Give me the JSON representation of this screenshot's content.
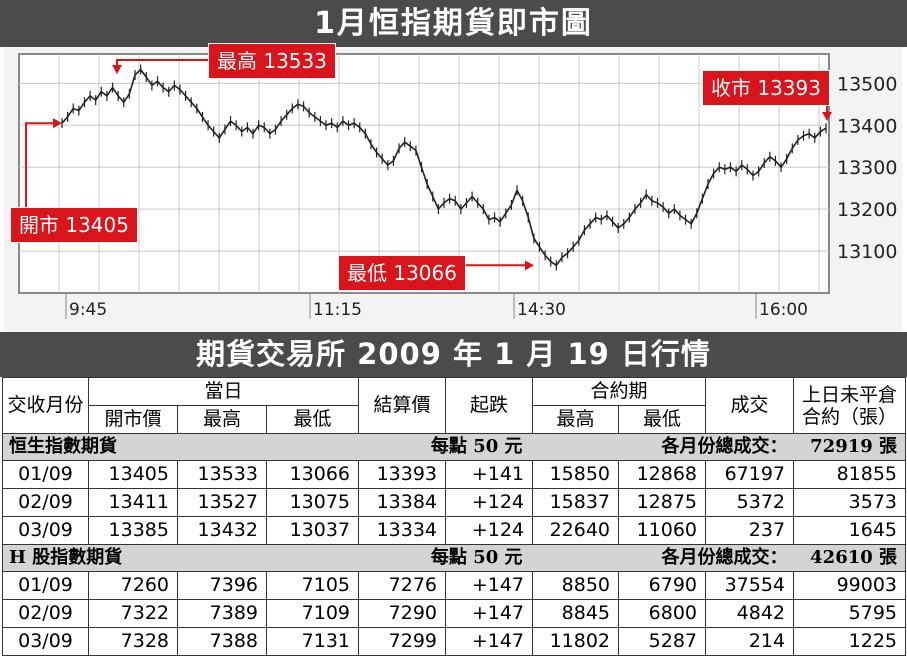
{
  "title": "1月恒指期貨即市圖",
  "chart_data": {
    "type": "line",
    "title": "1月恒指期貨即市圖",
    "x_ticks": [
      "9:45",
      "11:15",
      "14:30",
      "16:00"
    ],
    "y_ticks": [
      13100,
      13200,
      13300,
      13400,
      13500
    ],
    "ylim": [
      13000,
      13570
    ],
    "grid": true,
    "y_axis_side": "right",
    "series": [
      {
        "values": [
          13405,
          13420,
          13440,
          13435,
          13455,
          13470,
          13460,
          13480,
          13470,
          13490,
          13470,
          13455,
          13475,
          13520,
          13533,
          13515,
          13495,
          13505,
          13490,
          13480,
          13495,
          13485,
          13470,
          13455,
          13440,
          13420,
          13400,
          13385,
          13370,
          13390,
          13410,
          13400,
          13385,
          13395,
          13380,
          13400,
          13395,
          13380,
          13390,
          13410,
          13425,
          13440,
          13450,
          13445,
          13430,
          13420,
          13410,
          13400,
          13405,
          13395,
          13410,
          13400,
          13405,
          13395,
          13380,
          13355,
          13335,
          13320,
          13305,
          13315,
          13345,
          13360,
          13350,
          13340,
          13300,
          13260,
          13230,
          13200,
          13215,
          13225,
          13220,
          13200,
          13215,
          13230,
          13215,
          13200,
          13175,
          13180,
          13170,
          13190,
          13210,
          13245,
          13220,
          13180,
          13130,
          13110,
          13090,
          13075,
          13066,
          13085,
          13095,
          13110,
          13125,
          13150,
          13165,
          13180,
          13175,
          13185,
          13170,
          13155,
          13165,
          13180,
          13200,
          13215,
          13235,
          13220,
          13215,
          13205,
          13190,
          13200,
          13185,
          13175,
          13165,
          13190,
          13225,
          13260,
          13285,
          13300,
          13295,
          13300,
          13290,
          13305,
          13295,
          13280,
          13290,
          13310,
          13325,
          13315,
          13300,
          13320,
          13345,
          13365,
          13375,
          13380,
          13370,
          13385,
          13393
        ],
        "open": 13405,
        "high": 13533,
        "low": 13066,
        "close": 13393
      }
    ],
    "annotations": [
      {
        "label": "開市 13405",
        "value": 13405
      },
      {
        "label": "最高 13533",
        "value": 13533
      },
      {
        "label": "最低 13066",
        "value": 13066
      },
      {
        "label": "收市 13393",
        "value": 13393
      }
    ],
    "line_color": "#222222",
    "callout_color": "#d9141b"
  },
  "table_title": "期貨交易所 2009 年 1 月 19 日行情",
  "table": {
    "headers": {
      "month": "交收月份",
      "day_group": "當日",
      "open": "開市價",
      "high": "最高",
      "low": "最低",
      "settle": "結算價",
      "change": "起跌",
      "contract_group": "合約期",
      "c_high": "最高",
      "c_low": "最低",
      "volume": "成交",
      "oi_line1": "上日未平倉",
      "oi_line2": "合約（張）"
    },
    "sections": [
      {
        "name": "恒生指數期貨",
        "per_point": "每點 50 元",
        "total_label": "各月份總成交：",
        "total": "72919 張",
        "rows": [
          [
            "01/09",
            "13405",
            "13533",
            "13066",
            "13393",
            "+141",
            "15850",
            "12868",
            "67197",
            "81855"
          ],
          [
            "02/09",
            "13411",
            "13527",
            "13075",
            "13384",
            "+124",
            "15837",
            "12875",
            "5372",
            "3573"
          ],
          [
            "03/09",
            "13385",
            "13432",
            "13037",
            "13334",
            "+124",
            "22640",
            "11060",
            "237",
            "1645"
          ]
        ]
      },
      {
        "name": "H 股指數期貨",
        "per_point": "每點 50 元",
        "total_label": "各月份總成交：",
        "total": "42610 張",
        "rows": [
          [
            "01/09",
            "7260",
            "7396",
            "7105",
            "7276",
            "+147",
            "8850",
            "6790",
            "37554",
            "99003"
          ],
          [
            "02/09",
            "7322",
            "7389",
            "7109",
            "7290",
            "+147",
            "8845",
            "6800",
            "4842",
            "5795"
          ],
          [
            "03/09",
            "7328",
            "7388",
            "7131",
            "7299",
            "+147",
            "11802",
            "5287",
            "214",
            "1225"
          ]
        ]
      }
    ]
  }
}
